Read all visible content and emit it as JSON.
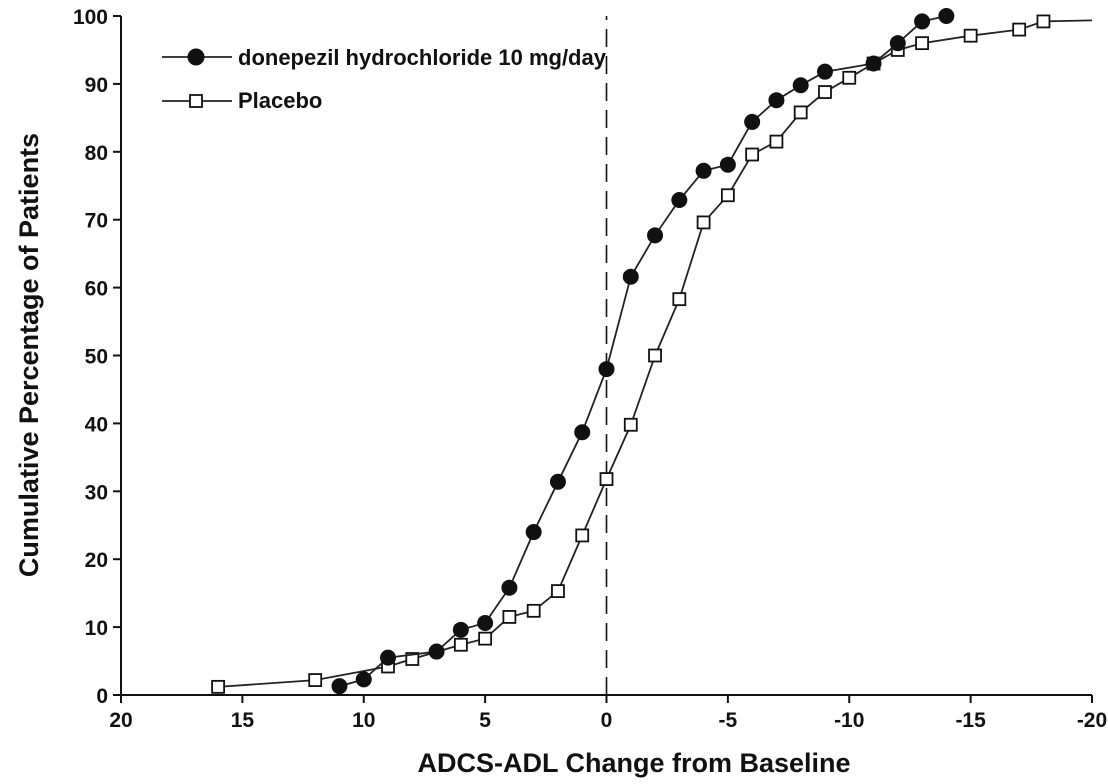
{
  "chart_data": {
    "type": "line",
    "title": "",
    "xlabel": "ADCS-ADL Change from Baseline",
    "ylabel": "Cumulative Percentage of Patients",
    "xlim": [
      20,
      -20
    ],
    "ylim": [
      0,
      100
    ],
    "x_reversed": true,
    "x_ticks": [
      20,
      15,
      10,
      5,
      0,
      -5,
      -10,
      -15,
      -20
    ],
    "x_tick_labels": [
      "20",
      "15",
      "10",
      "5",
      "0",
      "-5",
      "-10",
      "-15",
      "-20"
    ],
    "y_ticks": [
      0,
      10,
      20,
      30,
      40,
      50,
      60,
      70,
      80,
      90,
      100
    ],
    "y_tick_labels": [
      "0",
      "10",
      "20",
      "30",
      "40",
      "50",
      "60",
      "70",
      "80",
      "90",
      "100"
    ],
    "reference_line_x": 0,
    "grid": false,
    "legend_position": "top-left",
    "series": [
      {
        "name": "donepezil hydrochloride 10 mg/day",
        "marker": "filled-circle",
        "x": [
          11,
          10,
          9,
          7,
          6,
          5,
          4,
          3,
          2,
          1,
          0,
          -1,
          -2,
          -3,
          -4,
          -5,
          -6,
          -7,
          -8,
          -9,
          -11,
          -12,
          -13,
          -14
        ],
        "y": [
          1.3,
          2.3,
          5.5,
          6.4,
          9.6,
          10.6,
          15.8,
          24.0,
          31.4,
          38.7,
          48.0,
          61.6,
          67.7,
          72.9,
          77.2,
          78.1,
          84.4,
          87.6,
          89.8,
          91.8,
          93.0,
          96.0,
          99.2,
          100.0
        ]
      },
      {
        "name": "Placebo",
        "marker": "open-square",
        "x": [
          16,
          12,
          9,
          8,
          6,
          5,
          4,
          3,
          2,
          1,
          0,
          -1,
          -2,
          -3,
          -4,
          -5,
          -6,
          -7,
          -8,
          -9,
          -10,
          -11,
          -12,
          -13,
          -15,
          -17,
          -18
        ],
        "y": [
          1.2,
          2.2,
          4.2,
          5.3,
          7.4,
          8.3,
          11.5,
          12.4,
          15.3,
          23.5,
          31.8,
          39.8,
          50.0,
          58.3,
          69.6,
          73.6,
          79.6,
          81.5,
          85.8,
          88.8,
          90.9,
          93.0,
          95.0,
          96.0,
          97.1,
          98.0,
          99.2
        ]
      }
    ]
  }
}
